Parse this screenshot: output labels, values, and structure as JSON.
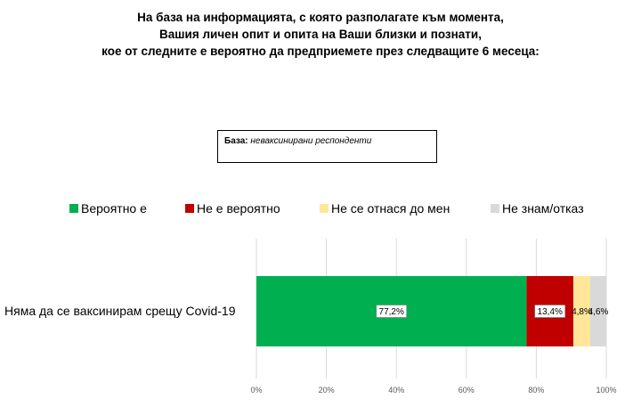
{
  "title_lines": [
    "На база на информацията, с която разполагате към момента,",
    "Вашия личен опит и опита на Ваши близки и познати,",
    "кое от следните е вероятно да предприемете през следващите 6 месеца:"
  ],
  "base": {
    "label": "База:",
    "value": "неваксинирани респонденти"
  },
  "colors": {
    "likely": "#00B050",
    "not_likely": "#C00000",
    "not_applicable": "#FFE699",
    "dont_know": "#D9D9D9",
    "grid": "#D9D9D9",
    "axis_text": "#595959"
  },
  "chart_data": {
    "type": "bar",
    "orientation": "horizontal",
    "stacked": "percent",
    "categories": [
      "Няма да се ваксинирам срещу Covid-19"
    ],
    "series": [
      {
        "name": "Вероятно е",
        "values": [
          77.2
        ],
        "label": "77,2%",
        "color": "#00B050"
      },
      {
        "name": "Не е вероятно",
        "values": [
          13.4
        ],
        "label": "13,4%",
        "color": "#C00000"
      },
      {
        "name": "Не се отнася до мен",
        "values": [
          4.8
        ],
        "label": "4,8%",
        "color": "#FFE699"
      },
      {
        "name": "Не знам/отказ",
        "values": [
          4.6
        ],
        "label": "4,6%",
        "color": "#D9D9D9"
      }
    ],
    "xlim": [
      0,
      100
    ],
    "xticks": [
      "0%",
      "20%",
      "40%",
      "60%",
      "80%",
      "100%"
    ],
    "grid": true,
    "legend": "top"
  }
}
